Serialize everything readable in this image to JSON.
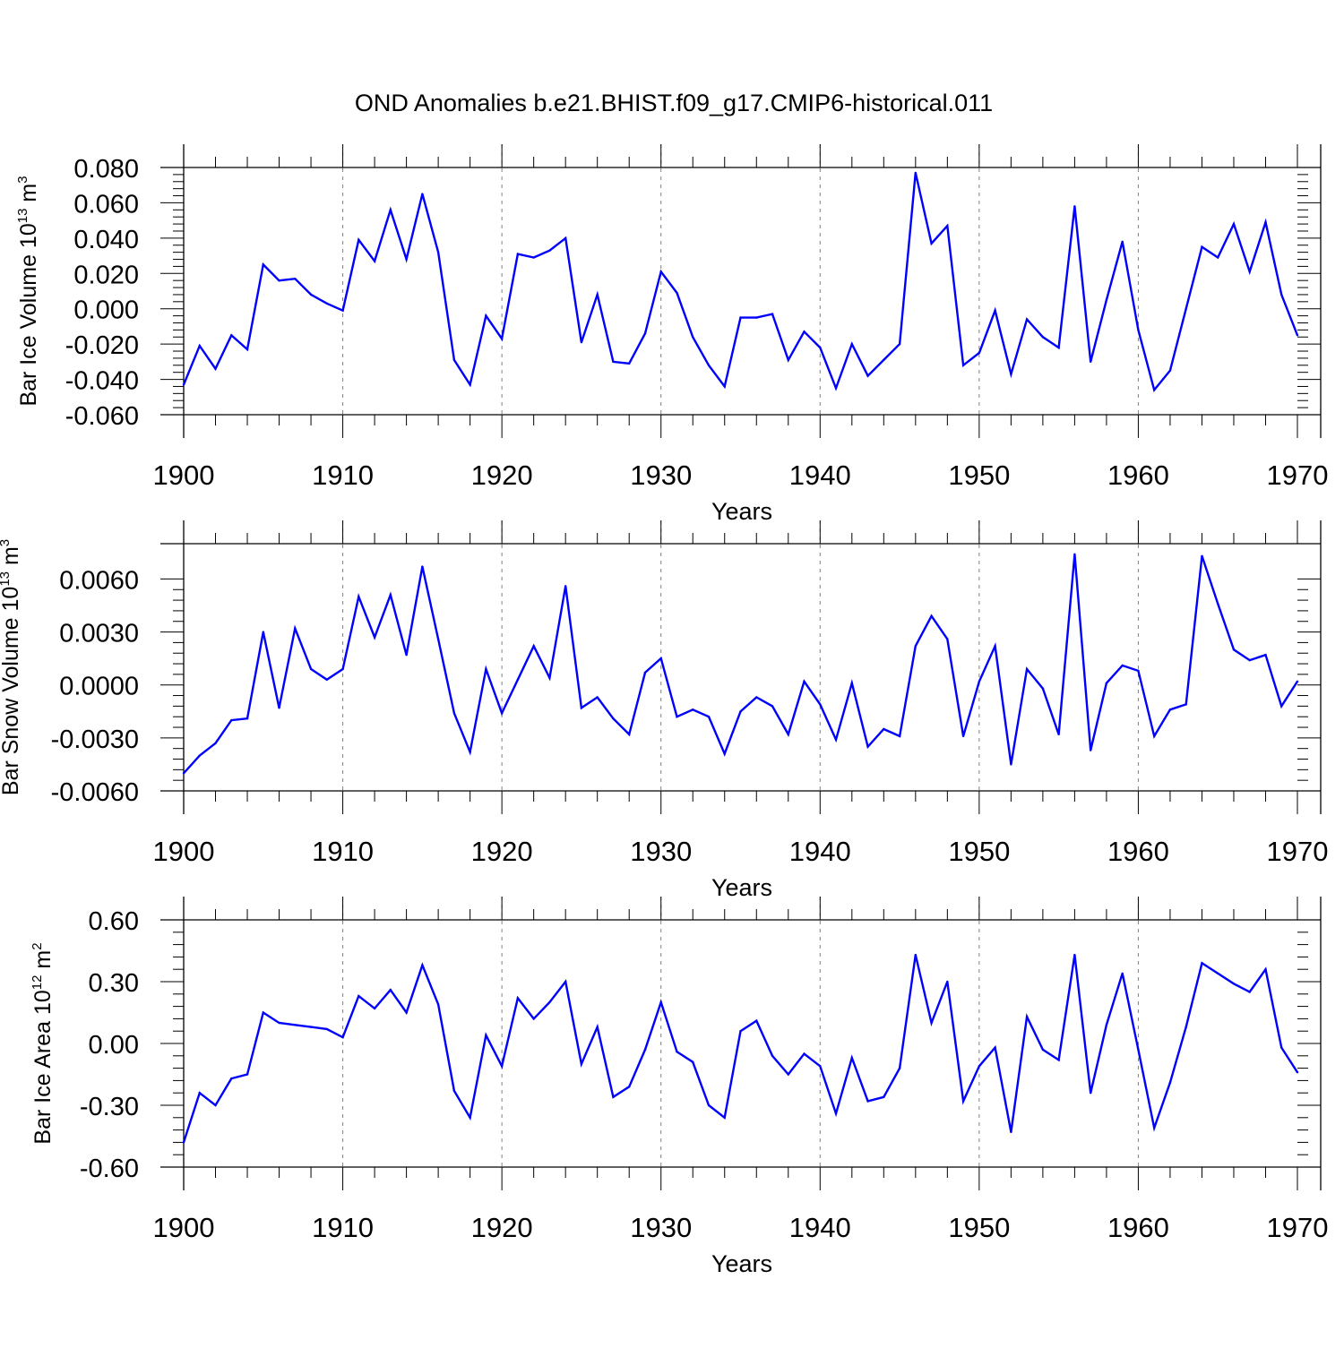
{
  "title": "OND Anomalies b.e21.BHIST.f09_g17.CMIP6-historical.011",
  "colors": {
    "series": "#0000ff",
    "axes": "#000000",
    "grid": "#808080"
  },
  "chart_data": [
    {
      "type": "line",
      "name": "ice-volume",
      "ylabel_main": "Bar Ice Volume 10",
      "ylabel_sup": "13",
      "ylabel_unit": " m",
      "ylabel_unit_sup": "3",
      "xlabel": "Years",
      "xlim": [
        1900,
        1970
      ],
      "ylim": [
        -0.06,
        0.08
      ],
      "yticks": [
        -0.06,
        -0.04,
        -0.02,
        0.0,
        0.02,
        0.04,
        0.06,
        0.08
      ],
      "ytick_labels": [
        "-0.060",
        "-0.040",
        "-0.020",
        "0.000",
        "0.020",
        "0.040",
        "0.060",
        "0.080"
      ],
      "xticks": [
        1900,
        1910,
        1920,
        1930,
        1940,
        1950,
        1960,
        1970
      ],
      "xtick_labels": [
        "1900",
        "1910",
        "1920",
        "1930",
        "1940",
        "1950",
        "1960",
        "1970"
      ],
      "grid": "dashed vertical lines at decades",
      "x": [
        1900,
        1901,
        1902,
        1903,
        1904,
        1905,
        1906,
        1907,
        1908,
        1909,
        1910,
        1911,
        1912,
        1913,
        1914,
        1915,
        1916,
        1917,
        1918,
        1919,
        1920,
        1921,
        1922,
        1923,
        1924,
        1925,
        1926,
        1927,
        1928,
        1929,
        1930,
        1931,
        1932,
        1933,
        1934,
        1935,
        1936,
        1937,
        1938,
        1939,
        1940,
        1941,
        1942,
        1943,
        1944,
        1945,
        1946,
        1947,
        1948,
        1949,
        1950,
        1951,
        1952,
        1953,
        1954,
        1955,
        1956,
        1957,
        1958,
        1959,
        1960,
        1961,
        1962,
        1963,
        1964,
        1965,
        1966,
        1967,
        1968,
        1969,
        1970
      ],
      "y": [
        -0.043,
        -0.021,
        -0.034,
        -0.015,
        -0.023,
        0.025,
        0.016,
        0.017,
        0.008,
        0.003,
        -0.001,
        0.039,
        0.027,
        0.056,
        0.028,
        0.065,
        0.032,
        -0.029,
        -0.043,
        -0.004,
        -0.017,
        0.031,
        0.029,
        0.033,
        0.04,
        -0.019,
        0.008,
        -0.03,
        -0.031,
        -0.014,
        0.021,
        0.009,
        -0.016,
        -0.032,
        -0.044,
        -0.005,
        -0.005,
        -0.003,
        -0.029,
        -0.013,
        -0.022,
        -0.045,
        -0.02,
        -0.038,
        -0.029,
        -0.02,
        0.077,
        0.037,
        0.047,
        -0.032,
        -0.025,
        -0.001,
        -0.037,
        -0.006,
        -0.016,
        -0.022,
        0.058,
        -0.03,
        0.005,
        0.038,
        -0.012,
        -0.046,
        -0.035,
        0.0,
        0.035,
        0.029,
        0.048,
        0.021,
        0.049,
        0.008,
        -0.015
      ]
    },
    {
      "type": "line",
      "name": "snow-volume",
      "ylabel_main": "Bar Snow Volume 10",
      "ylabel_sup": "13",
      "ylabel_unit": " m",
      "ylabel_unit_sup": "3",
      "xlabel": "Years",
      "xlim": [
        1900,
        1970
      ],
      "ylim": [
        -0.006,
        0.008
      ],
      "yticks": [
        -0.006,
        -0.003,
        0.0,
        0.003,
        0.006
      ],
      "ytick_labels": [
        "-0.0060",
        "-0.0030",
        "0.0000",
        "0.0030",
        "0.0060"
      ],
      "xticks": [
        1900,
        1910,
        1920,
        1930,
        1940,
        1950,
        1960,
        1970
      ],
      "xtick_labels": [
        "1900",
        "1910",
        "1920",
        "1930",
        "1940",
        "1950",
        "1960",
        "1970"
      ],
      "grid": "dashed vertical lines at decades",
      "x": [
        1900,
        1901,
        1902,
        1903,
        1904,
        1905,
        1906,
        1907,
        1908,
        1909,
        1910,
        1911,
        1912,
        1913,
        1914,
        1915,
        1916,
        1917,
        1918,
        1919,
        1920,
        1921,
        1922,
        1923,
        1924,
        1925,
        1926,
        1927,
        1928,
        1929,
        1930,
        1931,
        1932,
        1933,
        1934,
        1935,
        1936,
        1937,
        1938,
        1939,
        1940,
        1941,
        1942,
        1943,
        1944,
        1945,
        1946,
        1947,
        1948,
        1949,
        1950,
        1951,
        1952,
        1953,
        1954,
        1955,
        1956,
        1957,
        1958,
        1959,
        1960,
        1961,
        1962,
        1963,
        1964,
        1965,
        1966,
        1967,
        1968,
        1969,
        1970
      ],
      "y": [
        -0.005,
        -0.004,
        -0.0033,
        -0.002,
        -0.0019,
        0.003,
        -0.0013,
        0.0032,
        0.0009,
        0.0003,
        0.0009,
        0.005,
        0.0027,
        0.0051,
        0.0017,
        0.0067,
        0.0026,
        -0.0016,
        -0.0038,
        0.0009,
        -0.0016,
        0.0003,
        0.0022,
        0.0004,
        0.0056,
        -0.0013,
        -0.0007,
        -0.0019,
        -0.0028,
        0.0007,
        0.0015,
        -0.0018,
        -0.0014,
        -0.0018,
        -0.0039,
        -0.0015,
        -0.0007,
        -0.0012,
        -0.0028,
        0.0002,
        -0.0011,
        -0.0031,
        0.0001,
        -0.0035,
        -0.0025,
        -0.0029,
        0.0022,
        0.0039,
        0.0026,
        -0.0029,
        0.0002,
        0.0022,
        -0.0045,
        0.0009,
        -0.0002,
        -0.0028,
        0.0074,
        -0.0037,
        0.0001,
        0.0011,
        0.0008,
        -0.0029,
        -0.0014,
        -0.0011,
        0.0073,
        0.0046,
        0.002,
        0.0014,
        0.0017,
        -0.0012,
        0.0002
      ]
    },
    {
      "type": "line",
      "name": "ice-area",
      "ylabel_main": "Bar Ice Area 10",
      "ylabel_sup": "12",
      "ylabel_unit": " m",
      "ylabel_unit_sup": "2",
      "xlabel": "Years",
      "xlim": [
        1900,
        1970
      ],
      "ylim": [
        -0.6,
        0.6
      ],
      "yticks": [
        -0.6,
        -0.3,
        0.0,
        0.3,
        0.6
      ],
      "ytick_labels": [
        "-0.60",
        "-0.30",
        "0.00",
        "0.30",
        "0.60"
      ],
      "xticks": [
        1900,
        1910,
        1920,
        1930,
        1940,
        1950,
        1960,
        1970
      ],
      "xtick_labels": [
        "1900",
        "1910",
        "1920",
        "1930",
        "1940",
        "1950",
        "1960",
        "1970"
      ],
      "grid": "dashed vertical lines at decades",
      "x": [
        1900,
        1901,
        1902,
        1903,
        1904,
        1905,
        1906,
        1907,
        1908,
        1909,
        1910,
        1911,
        1912,
        1913,
        1914,
        1915,
        1916,
        1917,
        1918,
        1919,
        1920,
        1921,
        1922,
        1923,
        1924,
        1925,
        1926,
        1927,
        1928,
        1929,
        1930,
        1931,
        1932,
        1933,
        1934,
        1935,
        1936,
        1937,
        1938,
        1939,
        1940,
        1941,
        1942,
        1943,
        1944,
        1945,
        1946,
        1947,
        1948,
        1949,
        1950,
        1951,
        1952,
        1953,
        1954,
        1955,
        1956,
        1957,
        1958,
        1959,
        1960,
        1961,
        1962,
        1963,
        1964,
        1965,
        1966,
        1967,
        1968,
        1969,
        1970
      ],
      "y": [
        -0.48,
        -0.24,
        -0.3,
        -0.17,
        -0.15,
        0.15,
        0.1,
        0.09,
        0.08,
        0.07,
        0.03,
        0.23,
        0.17,
        0.26,
        0.15,
        0.38,
        0.19,
        -0.23,
        -0.36,
        0.04,
        -0.11,
        0.22,
        0.12,
        0.2,
        0.3,
        -0.1,
        0.08,
        -0.26,
        -0.21,
        -0.03,
        0.2,
        -0.04,
        -0.09,
        -0.3,
        -0.36,
        0.06,
        0.11,
        -0.06,
        -0.15,
        -0.05,
        -0.11,
        -0.34,
        -0.07,
        -0.28,
        -0.26,
        -0.12,
        0.43,
        0.1,
        0.3,
        -0.28,
        -0.11,
        -0.02,
        -0.43,
        0.13,
        -0.03,
        -0.08,
        0.43,
        -0.24,
        0.09,
        0.34,
        -0.03,
        -0.41,
        -0.19,
        0.08,
        0.39,
        0.34,
        0.29,
        0.25,
        0.36,
        -0.02,
        -0.14
      ]
    }
  ]
}
